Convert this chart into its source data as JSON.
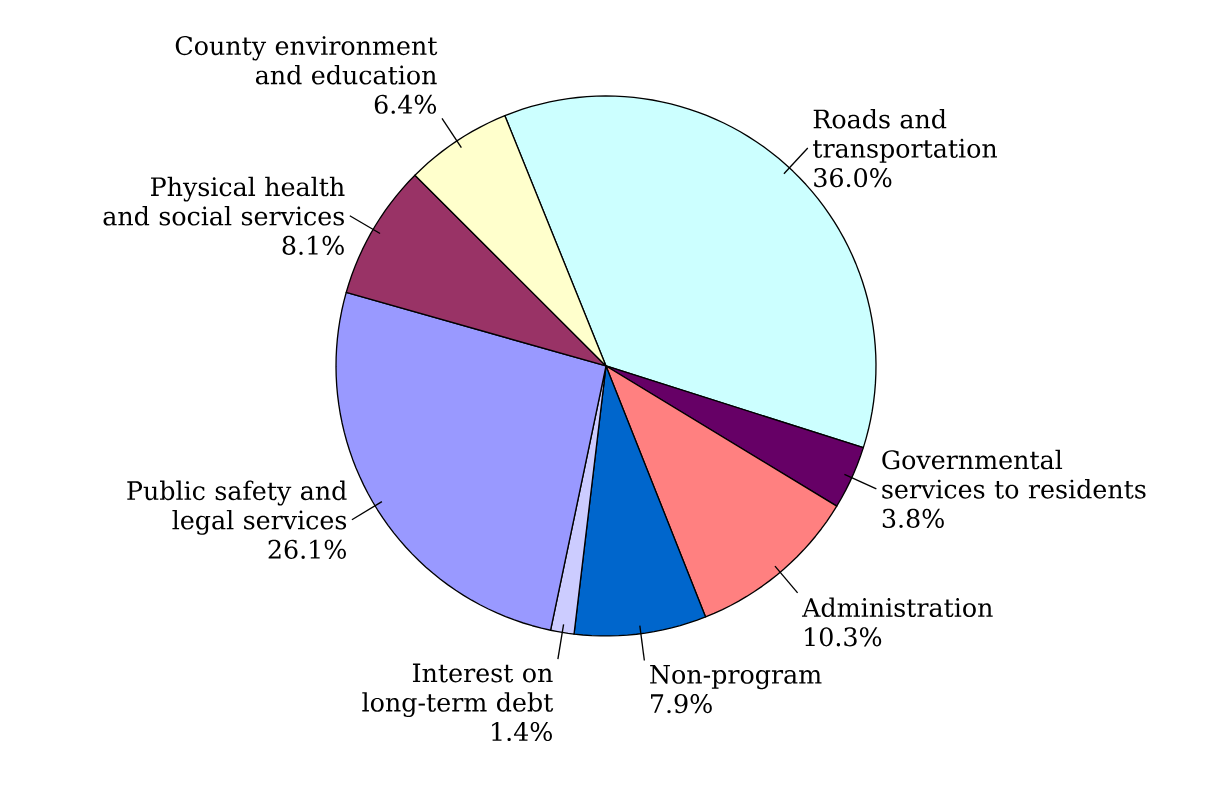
{
  "chart_data": {
    "type": "pie",
    "categories": [
      "Roads and transportation",
      "Governmental services to residents",
      "Administration",
      "Non-program",
      "Interest on long-term debt",
      "Public safety and legal services",
      "Physical health and social services",
      "County environment and education"
    ],
    "values": [
      36.0,
      3.8,
      10.3,
      7.9,
      1.4,
      26.1,
      8.1,
      6.4
    ],
    "colors": [
      "#ccffff",
      "#660066",
      "#ff8080",
      "#0066cc",
      "#ccccff",
      "#9999ff",
      "#993366",
      "#ffffcc"
    ],
    "value_labels": [
      "36.0%",
      "3.8%",
      "10.3%",
      "7.9%",
      "1.4%",
      "26.1%",
      "8.1%",
      "6.4%"
    ]
  }
}
